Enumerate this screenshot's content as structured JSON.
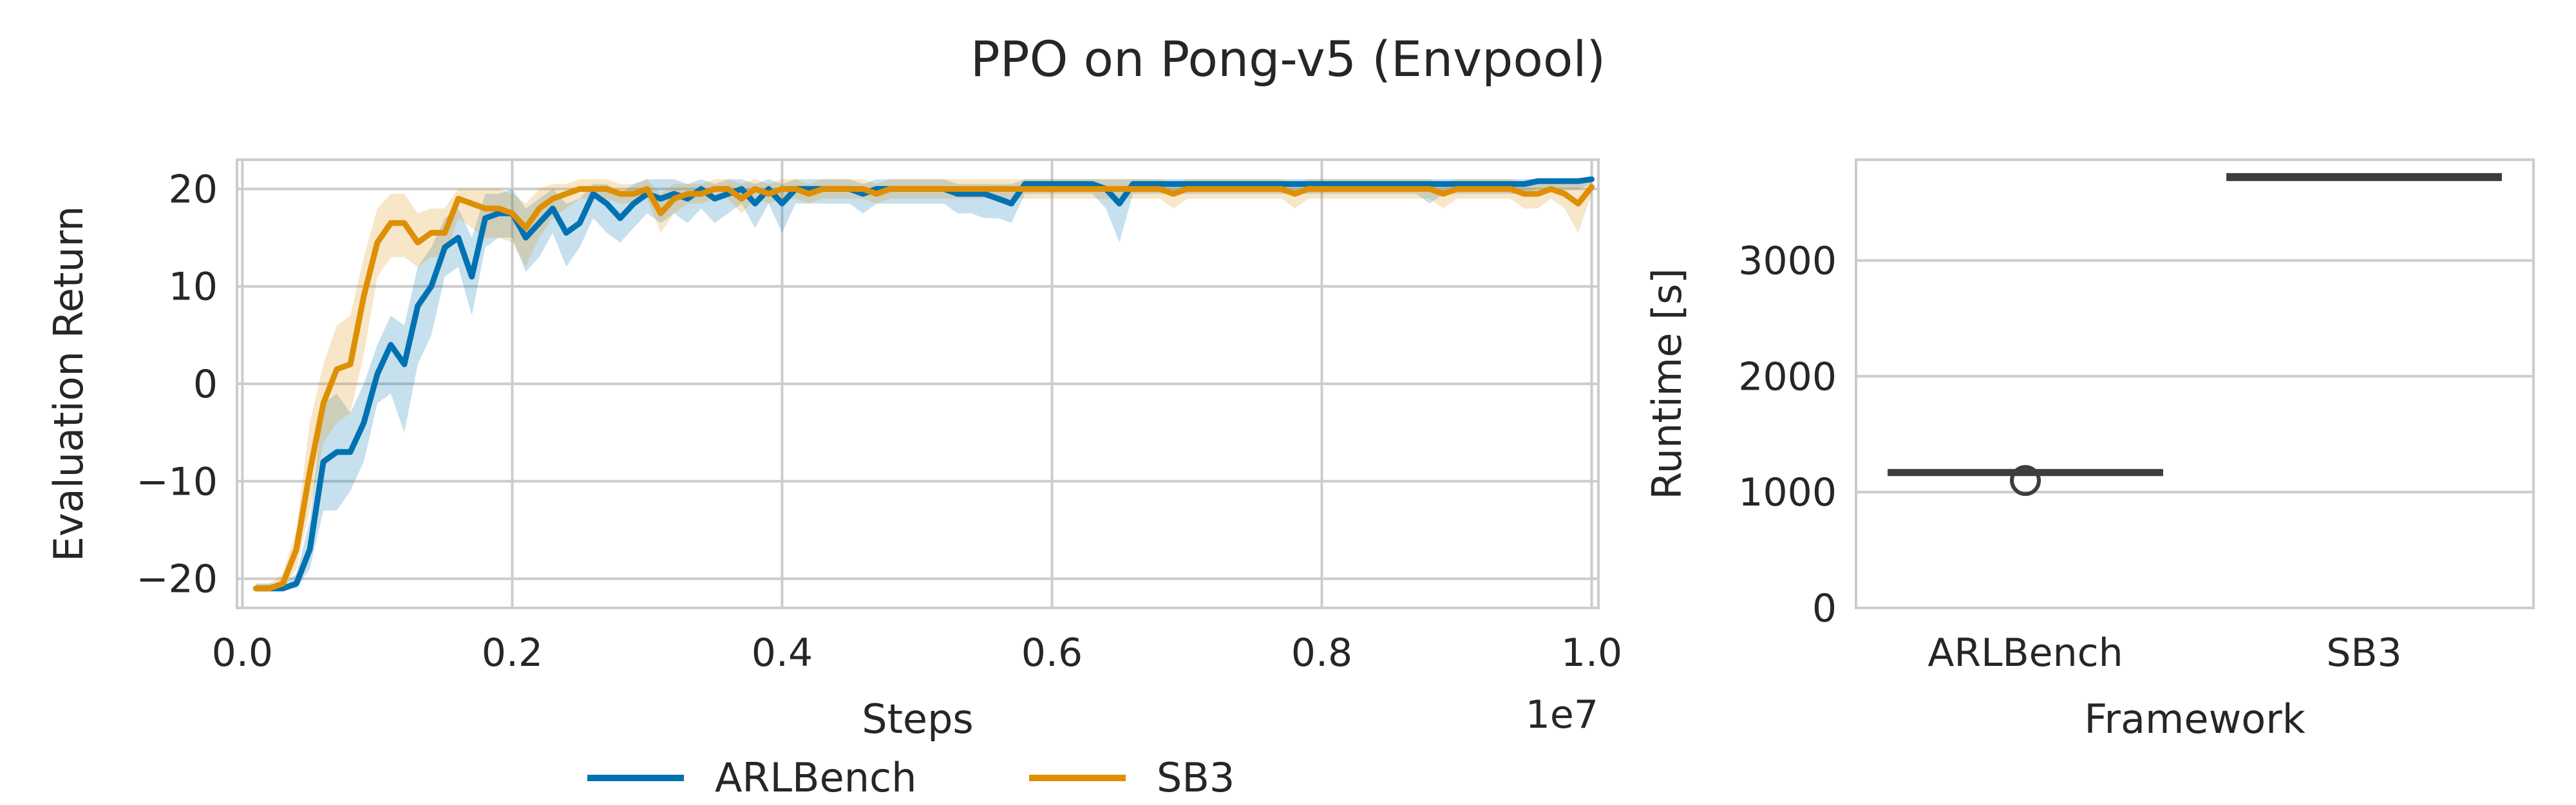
{
  "title": "PPO on Pong-v5 (Envpool)",
  "chart_data": [
    {
      "type": "line",
      "xlabel": "Steps",
      "ylabel": "Evaluation Return",
      "x_scale_label": "1e7",
      "xlim": [
        -0.004,
        1.005
      ],
      "ylim": [
        -23,
        23
      ],
      "xticks": [
        0.0,
        0.2,
        0.4,
        0.6,
        0.8,
        1.0
      ],
      "xtick_labels": [
        "0.0",
        "0.2",
        "0.4",
        "0.6",
        "0.8",
        "1.0"
      ],
      "yticks": [
        -20,
        -10,
        0,
        10,
        20
      ],
      "ytick_labels": [
        "−20",
        "−10",
        "0",
        "10",
        "20"
      ],
      "grid": true,
      "legend": "bottom-center",
      "x": [
        0.01,
        0.02,
        0.03,
        0.04,
        0.05,
        0.06,
        0.07,
        0.08,
        0.09,
        0.1,
        0.11,
        0.12,
        0.13,
        0.14,
        0.15,
        0.16,
        0.17,
        0.18,
        0.19,
        0.2,
        0.21,
        0.22,
        0.23,
        0.24,
        0.25,
        0.26,
        0.27,
        0.28,
        0.29,
        0.3,
        0.31,
        0.32,
        0.33,
        0.34,
        0.35,
        0.36,
        0.37,
        0.38,
        0.39,
        0.4,
        0.41,
        0.42,
        0.43,
        0.44,
        0.45,
        0.46,
        0.47,
        0.48,
        0.49,
        0.5,
        0.51,
        0.52,
        0.53,
        0.54,
        0.55,
        0.56,
        0.57,
        0.58,
        0.59,
        0.6,
        0.61,
        0.62,
        0.63,
        0.64,
        0.65,
        0.66,
        0.67,
        0.68,
        0.69,
        0.7,
        0.71,
        0.72,
        0.73,
        0.74,
        0.75,
        0.76,
        0.77,
        0.78,
        0.79,
        0.8,
        0.81,
        0.82,
        0.83,
        0.84,
        0.85,
        0.86,
        0.87,
        0.88,
        0.89,
        0.9,
        0.91,
        0.92,
        0.93,
        0.94,
        0.95,
        0.96,
        0.97,
        0.98,
        0.99,
        1.0
      ],
      "series": [
        {
          "name": "ARLBench",
          "color": "#0072b2",
          "values": [
            -21,
            -21,
            -21,
            -20.5,
            -17,
            -8,
            -7,
            -7,
            -4,
            1,
            4,
            2,
            8,
            10,
            14,
            15,
            11,
            17,
            17.5,
            17.5,
            15,
            16.5,
            18,
            15.5,
            16.5,
            19.5,
            18.5,
            17,
            18.5,
            19.5,
            19,
            19.5,
            19,
            20,
            19,
            19.5,
            20,
            18.5,
            20,
            18.5,
            20,
            20,
            20,
            20,
            20,
            19.5,
            20,
            20,
            20,
            20,
            20,
            20,
            19.5,
            19.5,
            19.5,
            19,
            18.5,
            20.5,
            20.5,
            20.5,
            20.5,
            20.5,
            20.5,
            20,
            18.5,
            20.5,
            20.5,
            20.5,
            20.5,
            20.5,
            20.5,
            20.5,
            20.5,
            20.5,
            20.5,
            20.5,
            20.5,
            20.5,
            20.5,
            20.5,
            20.5,
            20.5,
            20.5,
            20.5,
            20.5,
            20.5,
            20.5,
            20.5,
            20.5,
            20.5,
            20.5,
            20.5,
            20.5,
            20.5,
            20.5,
            20.8,
            20.8,
            20.8,
            20.8,
            21
          ],
          "lower": [
            -21,
            -21,
            -21,
            -21,
            -19,
            -13,
            -13,
            -11,
            -8,
            -2,
            -1,
            -5,
            2,
            5,
            11,
            12,
            7,
            14,
            15,
            15,
            11.5,
            13,
            15.5,
            12,
            14,
            17,
            15.5,
            14.5,
            16,
            17.5,
            16.5,
            17.5,
            16.5,
            18,
            16.5,
            17.5,
            18.5,
            16,
            18.5,
            15.5,
            18.5,
            18.5,
            18.5,
            18.5,
            18.5,
            17.5,
            18.5,
            18.5,
            18.5,
            18.5,
            18.5,
            18.5,
            17.5,
            17.5,
            17,
            17,
            16.5,
            19.5,
            19.5,
            19.5,
            19.5,
            19.5,
            19.5,
            18,
            14.5,
            19.5,
            19.5,
            19.5,
            19.5,
            19.5,
            19.5,
            19.5,
            19.5,
            19.5,
            19.5,
            19.5,
            19.5,
            19.5,
            19.5,
            19.5,
            19.5,
            19.5,
            19.5,
            19.5,
            19.5,
            19.5,
            19.5,
            18.5,
            19.5,
            19.5,
            19.5,
            19.5,
            19.5,
            19.5,
            19.5,
            20,
            20,
            20,
            20,
            20.5
          ],
          "upper": [
            -20.5,
            -20.5,
            -20.5,
            -19.5,
            -14,
            -2,
            -1,
            -3,
            0,
            4,
            7,
            6,
            12,
            14,
            17,
            18,
            15,
            19.5,
            19.5,
            20,
            18,
            19,
            20,
            18.5,
            19,
            20.5,
            20.5,
            19.5,
            20.5,
            21,
            21,
            21,
            20.5,
            21,
            20.5,
            21,
            21,
            20.5,
            21,
            20.5,
            21,
            21,
            21,
            21,
            21,
            20.5,
            21,
            21,
            21,
            21,
            21,
            21,
            20.5,
            20.5,
            20.5,
            20.5,
            20.5,
            21,
            21,
            21,
            21,
            21,
            21,
            21,
            21,
            21,
            21,
            21,
            21,
            21,
            21,
            21,
            21,
            21,
            21,
            21,
            21,
            21,
            21,
            21,
            21,
            21,
            21,
            21,
            21,
            21,
            21,
            21,
            21,
            21,
            21,
            21,
            21,
            21,
            21,
            21,
            21,
            21,
            21,
            21.2
          ]
        },
        {
          "name": "SB3",
          "color": "#de8f05",
          "values": [
            -21,
            -21,
            -20.5,
            -17,
            -9,
            -2,
            1.5,
            2,
            9,
            14.5,
            16.5,
            16.5,
            14.5,
            15.5,
            15.5,
            19,
            18.5,
            18,
            18,
            17.5,
            16,
            18,
            19,
            19.5,
            20,
            20,
            20,
            19.5,
            19.5,
            20,
            17.5,
            19,
            19.5,
            19.5,
            20,
            20,
            19,
            20,
            19.5,
            20,
            20,
            19.5,
            20,
            20,
            20,
            20,
            19.5,
            20,
            20,
            20,
            20,
            20,
            20,
            20,
            20,
            20,
            20,
            20,
            20,
            20,
            20,
            20,
            20,
            20,
            20,
            20,
            20,
            20,
            19.5,
            20,
            20,
            20,
            20,
            20,
            20,
            20,
            20,
            19.5,
            20,
            20,
            20,
            20,
            20,
            20,
            20,
            20,
            20,
            20,
            19.5,
            20,
            20,
            20,
            20,
            20,
            19.5,
            19.5,
            20,
            19.5,
            18.5,
            20.2
          ],
          "lower": [
            -21,
            -21,
            -21,
            -19,
            -13,
            -6,
            -4,
            -3,
            3,
            11,
            13,
            13,
            12,
            13,
            13,
            17,
            16,
            15,
            15,
            14.5,
            12,
            15,
            17,
            18,
            19,
            19,
            19,
            18.5,
            18.5,
            19,
            15.5,
            17.5,
            18.5,
            18.5,
            19,
            19,
            17.5,
            19,
            18.5,
            19,
            19,
            18.5,
            19,
            19,
            19,
            19,
            18.5,
            19,
            19,
            19,
            19,
            19,
            19,
            19,
            19,
            19,
            19,
            19,
            19,
            19,
            19,
            19,
            19,
            19,
            19,
            19,
            19,
            19,
            18,
            19,
            19,
            19,
            19,
            19,
            19,
            19,
            19,
            18,
            19,
            19,
            19,
            19,
            19,
            19,
            19,
            19,
            19,
            19,
            18,
            19,
            19,
            19,
            19,
            19,
            18,
            18,
            19,
            18,
            15.5,
            19.5
          ],
          "upper": [
            -20.5,
            -20.5,
            -19.5,
            -15,
            -4,
            2,
            6,
            7,
            13,
            18,
            19.5,
            19.5,
            17.5,
            18,
            18,
            20,
            20,
            20,
            20,
            19.5,
            18.5,
            20,
            20.5,
            20.5,
            21,
            21,
            21,
            20.5,
            20.5,
            21,
            19.5,
            20.5,
            20.5,
            20.5,
            21,
            21,
            20.5,
            21,
            20.5,
            21,
            21,
            20.5,
            21,
            21,
            21,
            21,
            20.5,
            21,
            21,
            21,
            21,
            21,
            21,
            21,
            21,
            21,
            21,
            21,
            21,
            21,
            21,
            21,
            21,
            21,
            21,
            21,
            21,
            21,
            20.5,
            21,
            21,
            21,
            21,
            21,
            21,
            21,
            21,
            20.5,
            21,
            21,
            21,
            21,
            21,
            21,
            21,
            21,
            21,
            21,
            20.5,
            21,
            21,
            21,
            21,
            21,
            20.5,
            20.5,
            21,
            20.5,
            20.5,
            21
          ]
        }
      ]
    },
    {
      "type": "box",
      "xlabel": "Framework",
      "ylabel": "Runtime [s]",
      "categories": [
        "ARLBench",
        "SB3"
      ],
      "ylim": [
        0,
        3870
      ],
      "yticks": [
        0,
        1000,
        2000,
        3000
      ],
      "ytick_labels": [
        "0",
        "1000",
        "2000",
        "3000"
      ],
      "grid": true,
      "boxes": [
        {
          "name": "ARLBench",
          "whisker_low": 1150,
          "q1": 1158,
          "median": 1165,
          "q3": 1180,
          "whisker_high": 1185,
          "outliers": [
            1100
          ]
        },
        {
          "name": "SB3",
          "whisker_low": 3700,
          "q1": 3705,
          "median": 3715,
          "q3": 3735,
          "whisker_high": 3745,
          "outliers": []
        }
      ]
    }
  ]
}
